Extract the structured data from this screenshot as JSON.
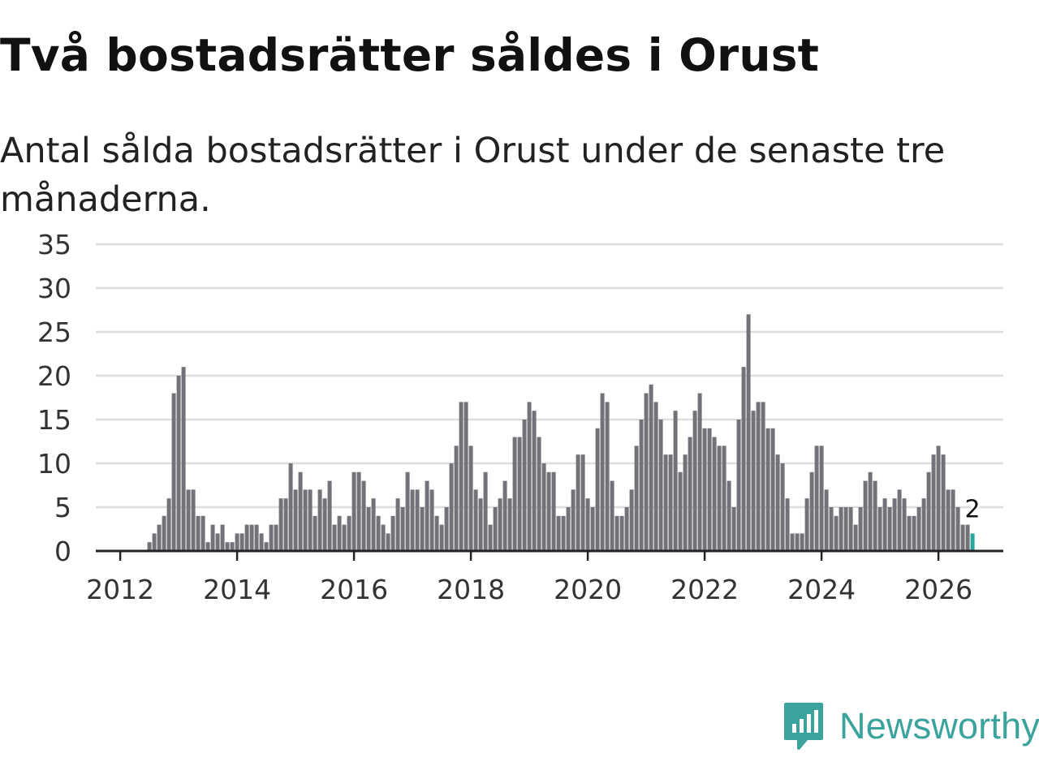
{
  "title": "Två bostadsrätter såldes i Orust",
  "subtitle": "Antal sålda bostadsrätter i Orust under de senaste tre månaderna.",
  "brand": {
    "name": "Newsworthy",
    "icon": "newsworthy-logo-icon"
  },
  "colors": {
    "bar": "#737278",
    "highlight": "#2aa89a",
    "grid": "#dddddd",
    "brand": "#3aa39c"
  },
  "chart_data": {
    "type": "bar",
    "title": "Två bostadsrätter såldes i Orust",
    "subtitle": "Antal sålda bostadsrätter i Orust under de senaste tre månaderna.",
    "xlabel": "",
    "ylabel": "",
    "start": "2011-10",
    "frequency": "monthly",
    "ylim": [
      0,
      35
    ],
    "yticks": [
      0,
      5,
      10,
      15,
      20,
      25,
      30,
      35
    ],
    "xticks": [
      "2012",
      "2014",
      "2016",
      "2018",
      "2020",
      "2022",
      "2024",
      "2026"
    ],
    "grid": true,
    "highlight_label": "2",
    "series": [
      {
        "name": "Antal sålda bostadsrätter",
        "values": [
          0,
          0,
          0,
          0,
          0,
          0,
          0,
          0,
          0,
          1,
          2,
          3,
          4,
          6,
          18,
          20,
          21,
          7,
          7,
          4,
          4,
          1,
          3,
          2,
          3,
          1,
          1,
          2,
          2,
          3,
          3,
          3,
          2,
          1,
          3,
          3,
          6,
          6,
          10,
          7,
          9,
          7,
          7,
          4,
          7,
          6,
          8,
          3,
          4,
          3,
          4,
          9,
          9,
          8,
          5,
          6,
          4,
          3,
          2,
          4,
          6,
          5,
          9,
          7,
          7,
          5,
          8,
          7,
          4,
          3,
          5,
          10,
          12,
          17,
          17,
          12,
          7,
          6,
          9,
          3,
          5,
          6,
          8,
          6,
          13,
          13,
          15,
          17,
          16,
          13,
          10,
          9,
          9,
          4,
          4,
          5,
          7,
          11,
          11,
          6,
          5,
          14,
          18,
          17,
          8,
          4,
          4,
          5,
          7,
          12,
          15,
          18,
          19,
          17,
          15,
          11,
          11,
          16,
          9,
          11,
          13,
          16,
          18,
          14,
          14,
          13,
          12,
          12,
          8,
          5,
          15,
          21,
          27,
          16,
          17,
          17,
          14,
          14,
          11,
          10,
          6,
          2,
          2,
          2,
          6,
          9,
          12,
          12,
          7,
          5,
          4,
          5,
          5,
          5,
          3,
          5,
          8,
          9,
          8,
          5,
          6,
          5,
          6,
          7,
          6,
          4,
          4,
          5,
          6,
          9,
          11,
          12,
          11,
          7,
          7,
          5,
          3,
          3,
          2
        ]
      }
    ]
  }
}
